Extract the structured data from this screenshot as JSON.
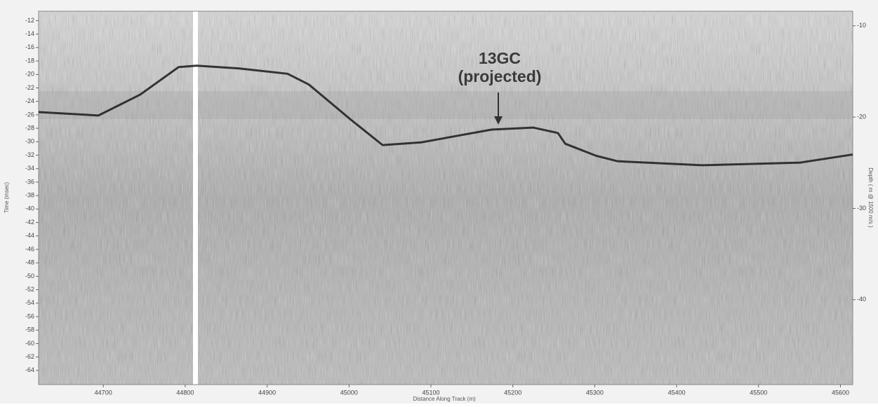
{
  "chart_data": {
    "type": "line",
    "x_label": "Distance Along Track (m)",
    "y_label": "Time (msec)",
    "y2_label": "Depth ( m @ 1500 m/s )",
    "annotations": [
      "13GC",
      "(projected)"
    ],
    "xlim": [
      44621,
      45615
    ],
    "xticks": [
      44700,
      44800,
      44900,
      45000,
      45100,
      45200,
      45300,
      45400,
      45500,
      45600
    ],
    "ylim": [
      -66.1,
      -10.6
    ],
    "yticks": [
      -12,
      -14,
      -16,
      -18,
      -20,
      -22,
      -24,
      -26,
      -28,
      -30,
      -32,
      -34,
      -36,
      -38,
      -40,
      -42,
      -44,
      -46,
      -48,
      -50,
      -52,
      -54,
      -56,
      -58,
      -60,
      -62,
      -64
    ],
    "y2lim": [
      -49.3,
      -8.4
    ],
    "y2ticks": [
      -10,
      -20,
      -30,
      -40
    ],
    "series": [
      {
        "color": "#1a1a1a",
        "x": [
          44621,
          44694,
          44745,
          44792,
          44814,
          44865,
          44925,
          44951,
          45002,
          45041,
          45088,
          45174,
          45225,
          45255,
          45264,
          45302,
          45328,
          45431,
          45551,
          45615
        ],
        "values": [
          -25.6,
          -26.1,
          -23.0,
          -18.9,
          -18.7,
          -19.1,
          -19.9,
          -21.5,
          -26.7,
          -30.5,
          -30.1,
          -28.2,
          -27.9,
          -28.7,
          -30.3,
          -32.1,
          -32.9,
          -33.5,
          -33.1,
          -31.9
        ]
      }
    ]
  }
}
